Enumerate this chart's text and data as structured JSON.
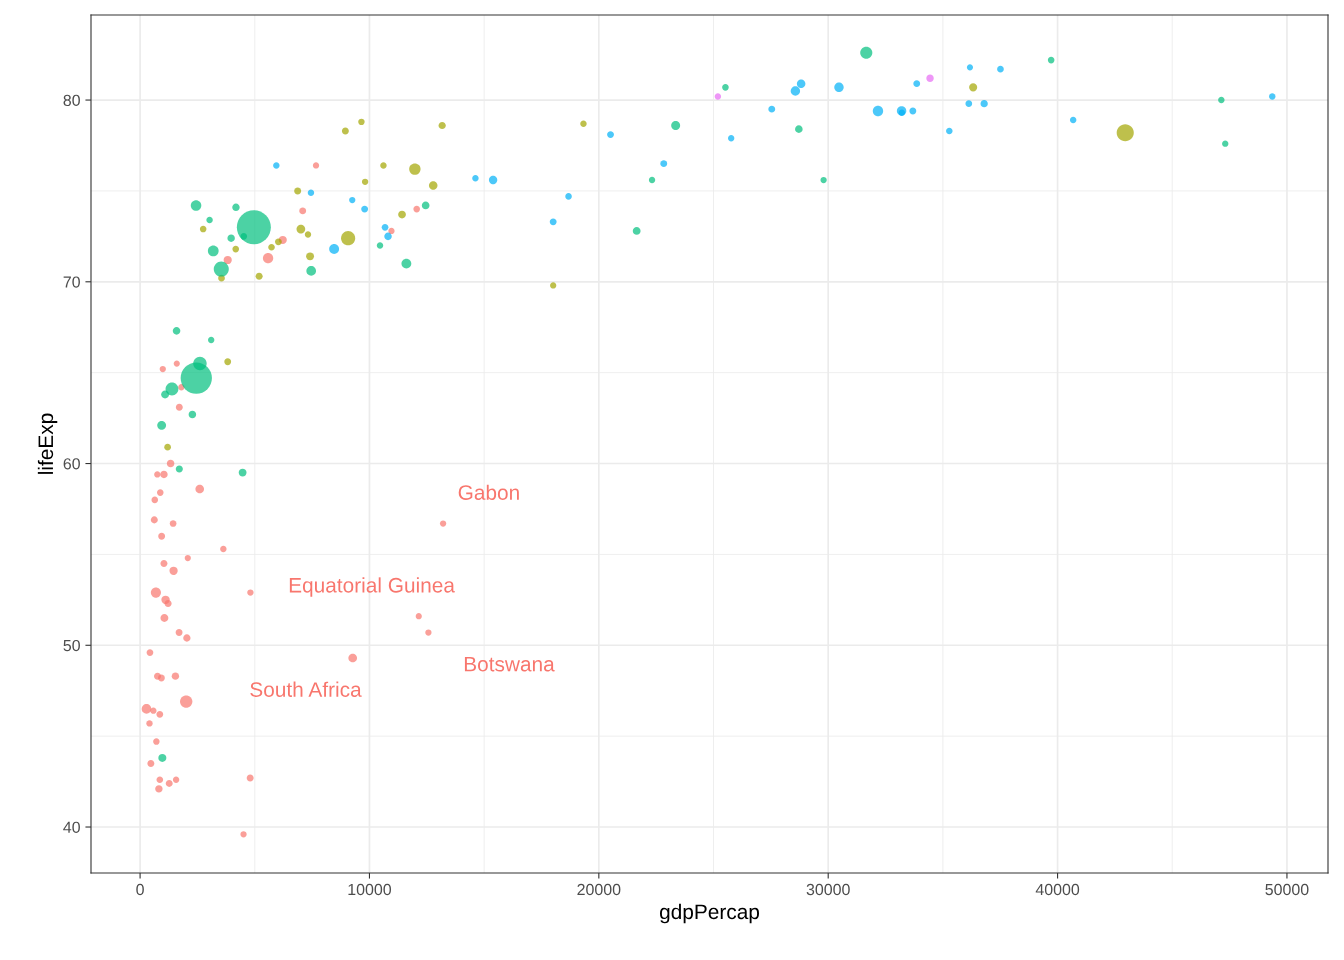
{
  "chart_data": {
    "type": "bubble",
    "xlabel": "gdpPercap",
    "ylabel": "lifeExp",
    "xlim": [
      -2140,
      51790
    ],
    "ylim": [
      37.47,
      84.68
    ],
    "xticks": [
      0,
      10000,
      20000,
      30000,
      40000,
      50000
    ],
    "yticks": [
      40,
      50,
      60,
      70,
      80
    ],
    "grid": true,
    "marker": "circle",
    "series": [
      {
        "color": "#f8766d",
        "x": [
          6220,
          4800,
          1440,
          12570,
          1220,
          430,
          2040,
          710,
          1700,
          990,
          280,
          3630,
          1540,
          2080,
          5580,
          12150,
          640,
          690,
          13210,
          750,
          1330,
          940,
          580,
          1460,
          1570,
          410,
          12060,
          1040,
          760,
          1040,
          1800,
          10960,
          3820,
          820,
          4810,
          620,
          2010,
          7670,
          860,
          1600,
          1710,
          860,
          930,
          9270,
          2600,
          4510,
          1110,
          880,
          7090,
          1060,
          1270,
          470
        ],
        "values": [
          72.3,
          42.7,
          56.7,
          50.7,
          52.3,
          49.6,
          50.4,
          44.7,
          50.7,
          65.2,
          46.5,
          55.3,
          48.3,
          54.8,
          71.3,
          51.6,
          58.0,
          52.9,
          56.7,
          59.4,
          60.0,
          56.0,
          46.4,
          54.1,
          42.6,
          45.7,
          74.0,
          59.4,
          48.3,
          54.5,
          64.2,
          72.8,
          71.2,
          42.1,
          52.9,
          56.9,
          46.9,
          76.4,
          46.2,
          65.5,
          63.1,
          42.6,
          48.2,
          49.3,
          58.6,
          39.6,
          52.5,
          58.4,
          73.9,
          51.5,
          42.4,
          43.5
        ],
        "sizes": [
          0.057,
          0.042,
          0.039,
          0.034,
          0.044,
          0.039,
          0.046,
          0.036,
          0.041,
          0.034,
          0.08,
          0.036,
          0.047,
          0.033,
          0.092,
          0.033,
          0.037,
          0.089,
          0.034,
          0.034,
          0.049,
          0.041,
          0.034,
          0.059,
          0.035,
          0.035,
          0.038,
          0.048,
          0.043,
          0.042,
          0.035,
          0.034,
          0.058,
          0.048,
          0.035,
          0.043,
          0.132,
          0.034,
          0.04,
          0.033,
          0.042,
          0.038,
          0.04,
          0.065,
          0.064,
          0.034,
          0.061,
          0.037,
          0.041,
          0.054,
          0.042,
          0.042
        ]
      },
      {
        "color": "#a3a500",
        "x": [
          12780,
          3820,
          9070,
          36320,
          13170,
          7010,
          9650,
          8950,
          6030,
          6870,
          5730,
          5190,
          1200,
          3550,
          7320,
          11980,
          2750,
          9810,
          4170,
          7410,
          19330,
          18010,
          42950,
          10610,
          11420
        ],
        "values": [
          75.3,
          65.6,
          72.4,
          80.7,
          78.6,
          72.9,
          78.8,
          78.3,
          72.2,
          75.0,
          71.9,
          70.3,
          60.9,
          70.2,
          72.6,
          76.2,
          72.9,
          75.5,
          71.8,
          71.4,
          78.7,
          69.8,
          78.2,
          76.4,
          73.7
        ],
        "sizes": [
          0.063,
          0.04,
          0.172,
          0.057,
          0.045,
          0.066,
          0.036,
          0.042,
          0.04,
          0.043,
          0.038,
          0.043,
          0.039,
          0.039,
          0.035,
          0.112,
          0.037,
          0.035,
          0.038,
          0.054,
          0.036,
          0.034,
          0.253,
          0.036,
          0.052
        ]
      },
      {
        "color": "#00bf7d",
        "x": [
          970,
          29800,
          1390,
          1710,
          4960,
          39720,
          2450,
          3540,
          11610,
          4470,
          25520,
          31660,
          4520,
          1590,
          23350,
          47310,
          10460,
          12450,
          3100,
          940,
          1090,
          22320,
          2610,
          3190,
          21650,
          47140,
          3970,
          4180,
          28720,
          7460,
          2440,
          3030,
          2280
        ],
        "values": [
          43.8,
          75.6,
          64.1,
          59.7,
          73.0,
          82.2,
          64.7,
          70.7,
          71.0,
          59.5,
          80.7,
          82.6,
          72.5,
          67.3,
          78.6,
          77.6,
          72.0,
          74.2,
          66.8,
          62.1,
          63.8,
          75.6,
          65.5,
          71.7,
          72.8,
          80.0,
          72.4,
          74.1,
          78.4,
          70.6,
          74.2,
          73.4,
          62.7
        ],
        "sizes": [
          0.056,
          0.034,
          0.143,
          0.044,
          1,
          0.038,
          0.847,
          0.196,
          0.084,
          0.053,
          0.038,
          0.127,
          0.038,
          0.05,
          0.069,
          0.035,
          0.036,
          0.051,
          0.035,
          0.068,
          0.054,
          0.035,
          0.157,
          0.1,
          0.053,
          0.036,
          0.048,
          0.048,
          0.05,
          0.08,
          0.096,
          0.036,
          0.049
        ]
      },
      {
        "color": "#00b0f6",
        "x": [
          5940,
          36130,
          33690,
          7450,
          10680,
          14620,
          22830,
          35280,
          33210,
          30470,
          32170,
          27540,
          18010,
          36180,
          40680,
          28570,
          9250,
          36800,
          49360,
          15390,
          20510,
          10810,
          9790,
          18680,
          25770,
          28820,
          33860,
          37510,
          8460,
          33200
        ],
        "values": [
          76.4,
          79.8,
          79.4,
          74.9,
          73.0,
          75.7,
          76.5,
          78.3,
          79.3,
          80.7,
          79.4,
          79.5,
          73.3,
          81.8,
          78.9,
          80.5,
          74.5,
          79.8,
          80.2,
          75.6,
          78.1,
          72.5,
          74.0,
          74.7,
          77.9,
          80.9,
          80.9,
          81.7,
          71.8,
          79.4
        ],
        "sizes": [
          0.036,
          0.039,
          0.041,
          0.036,
          0.039,
          0.036,
          0.041,
          0.037,
          0.037,
          0.077,
          0.093,
          0.041,
          0.041,
          0.033,
          0.036,
          0.076,
          0.034,
          0.046,
          0.036,
          0.061,
          0.041,
          0.049,
          0.041,
          0.037,
          0.035,
          0.063,
          0.04,
          0.039,
          0.085,
          0.077
        ]
      },
      {
        "color": "#e76bf3",
        "x": [
          34440,
          25190
        ],
        "values": [
          81.2,
          80.2
        ],
        "sizes": [
          0.048,
          0.036
        ]
      }
    ],
    "annotations": [
      {
        "text": "Gabon",
        "x": 13210,
        "y": 56.7
      },
      {
        "text": "Equatorial Guinea",
        "x": 12150,
        "y": 51.6
      },
      {
        "text": "Botswana",
        "x": 12570,
        "y": 50.7
      },
      {
        "text": "South Africa",
        "x": 9270,
        "y": 49.3
      }
    ]
  }
}
